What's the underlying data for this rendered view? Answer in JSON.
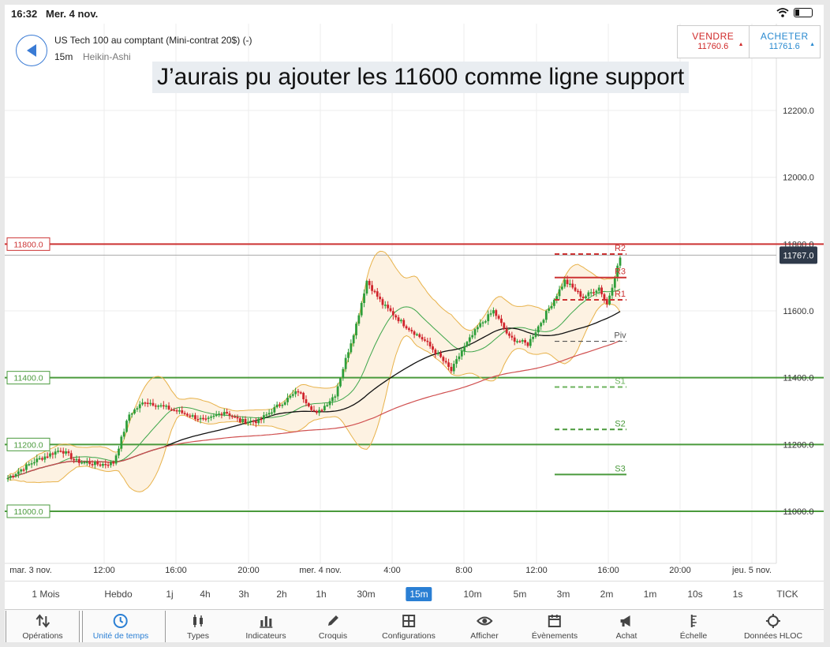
{
  "status": {
    "time": "16:32",
    "date": "Mer. 4 nov."
  },
  "header": {
    "instrument": "US Tech 100 au comptant (Mini-contrat 20$) (-)",
    "timeframe": "15m",
    "chart_style": "Heikin-Ashi",
    "sell_label": "VENDRE",
    "sell_price": "11760.6",
    "buy_label": "ACHETER",
    "buy_price": "11761.6"
  },
  "caption": "J’aurais pu ajouter les 11600 comme ligne support",
  "colors": {
    "up": "#2e9e3a",
    "down": "#d0242c",
    "accent": "#2a7fd4",
    "support": "#4a9a3c",
    "resistance": "#cc3333"
  },
  "chart_data": {
    "type": "candlestick",
    "y_ticks": [
      "12200.0",
      "12000.0",
      "11800.0",
      "11600.0",
      "11400.0",
      "11200.0",
      "11000.0"
    ],
    "y_range": [
      10830,
      12380
    ],
    "x_ticks": [
      "mar. 3 nov.",
      "12:00",
      "16:00",
      "20:00",
      "mer. 4 nov.",
      "4:00",
      "8:00",
      "12:00",
      "16:00",
      "20:00",
      "jeu. 5 nov."
    ],
    "current_price": "11767.0",
    "horizontal_lines": [
      {
        "label": "11800.0",
        "value": 11800,
        "color": "#cc3333"
      },
      {
        "label": "11400.0",
        "value": 11400,
        "color": "#4a9a3c"
      },
      {
        "label": "11200.0",
        "value": 11200,
        "color": "#4a9a3c"
      },
      {
        "label": "11000.0",
        "value": 11000,
        "color": "#4a9a3c"
      }
    ],
    "pivots": [
      {
        "label": "R3",
        "value": 11700,
        "color": "#cc3333",
        "style": "solid"
      },
      {
        "label": "R2",
        "value": 11770,
        "color": "#cc3333",
        "style": "dashed"
      },
      {
        "label": "R1",
        "value": 11633,
        "color": "#cc3333",
        "style": "dashed"
      },
      {
        "label": "Piv",
        "value": 11509,
        "color": "#555555",
        "style": "dashed"
      },
      {
        "label": "S1",
        "value": 11372,
        "color": "#6db35e",
        "style": "dashed"
      },
      {
        "label": "S2",
        "value": 11245,
        "color": "#4a9a3c",
        "style": "dashed"
      },
      {
        "label": "S3",
        "value": 11110,
        "color": "#4a9a3c",
        "style": "solid"
      }
    ],
    "price_path": [
      [
        0,
        11100
      ],
      [
        10,
        11150
      ],
      [
        20,
        11185
      ],
      [
        26,
        11150
      ],
      [
        35,
        11140
      ],
      [
        40,
        11145
      ],
      [
        46,
        11290
      ],
      [
        52,
        11330
      ],
      [
        60,
        11310
      ],
      [
        68,
        11290
      ],
      [
        75,
        11270
      ],
      [
        82,
        11300
      ],
      [
        88,
        11270
      ],
      [
        95,
        11270
      ],
      [
        103,
        11320
      ],
      [
        110,
        11360
      ],
      [
        117,
        11290
      ],
      [
        124,
        11350
      ],
      [
        132,
        11560
      ],
      [
        136,
        11690
      ],
      [
        142,
        11620
      ],
      [
        150,
        11560
      ],
      [
        158,
        11510
      ],
      [
        164,
        11460
      ],
      [
        168,
        11420
      ],
      [
        172,
        11480
      ],
      [
        178,
        11550
      ],
      [
        184,
        11600
      ],
      [
        190,
        11520
      ],
      [
        197,
        11500
      ],
      [
        203,
        11580
      ],
      [
        211,
        11690
      ],
      [
        218,
        11640
      ],
      [
        224,
        11670
      ],
      [
        227,
        11620
      ],
      [
        232,
        11760
      ]
    ]
  },
  "timeframes": [
    "1 Mois",
    "Hebdo",
    "1j",
    "4h",
    "3h",
    "2h",
    "1h",
    "30m",
    "15m",
    "10m",
    "5m",
    "3m",
    "2m",
    "1m",
    "10s",
    "1s",
    "TICK"
  ],
  "active_timeframe": "15m",
  "toolbar": [
    {
      "label": "Opérations",
      "icon": "updown-arrows-icon"
    },
    {
      "label": "Unité de temps",
      "icon": "clock-icon"
    },
    {
      "label": "Types",
      "icon": "candles-icon"
    },
    {
      "label": "Indicateurs",
      "icon": "bar-chart-icon"
    },
    {
      "label": "Croquis",
      "icon": "pencil-icon"
    },
    {
      "label": "Configurations",
      "icon": "layout-icon"
    },
    {
      "label": "Afficher",
      "icon": "eye-icon"
    },
    {
      "label": "Évènements",
      "icon": "calendar-icon"
    },
    {
      "label": "Achat",
      "icon": "megaphone-icon"
    },
    {
      "label": "Échelle",
      "icon": "scale-icon"
    },
    {
      "label": "Données HLOC",
      "icon": "crosshair-icon"
    }
  ]
}
